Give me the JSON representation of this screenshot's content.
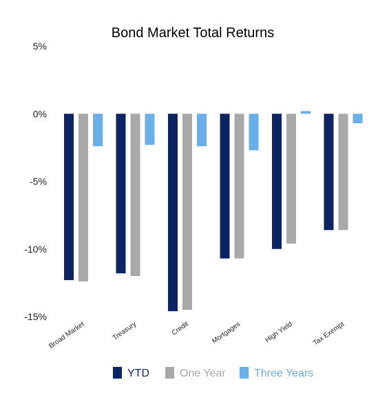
{
  "chart_data": {
    "type": "bar",
    "title": "Bond Market Total Returns",
    "categories": [
      "Broad Market",
      "Treasury",
      "Credit",
      "Mortgages",
      "High Yield",
      "Tax Exempt"
    ],
    "series": [
      {
        "name": "YTD",
        "color": "#0c2463",
        "values": [
          -12.3,
          -11.8,
          -14.6,
          -10.7,
          -10.0,
          -8.6
        ]
      },
      {
        "name": "One Year",
        "color": "#a9a9a9",
        "values": [
          -12.4,
          -12.0,
          -14.5,
          -10.7,
          -9.6,
          -8.6
        ]
      },
      {
        "name": "Three Years",
        "color": "#6aaeea",
        "values": [
          -2.4,
          -2.3,
          -2.4,
          -2.7,
          0.2,
          -0.7
        ]
      }
    ],
    "yticks": [
      "5%",
      "0%",
      "-5%",
      "-10%",
      "-15%"
    ],
    "ytick_values": [
      5,
      0,
      -5,
      -10,
      -15
    ],
    "ylim": [
      -15,
      5
    ],
    "xlabel": "",
    "ylabel": "",
    "grid": false,
    "legend_position": "bottom"
  }
}
